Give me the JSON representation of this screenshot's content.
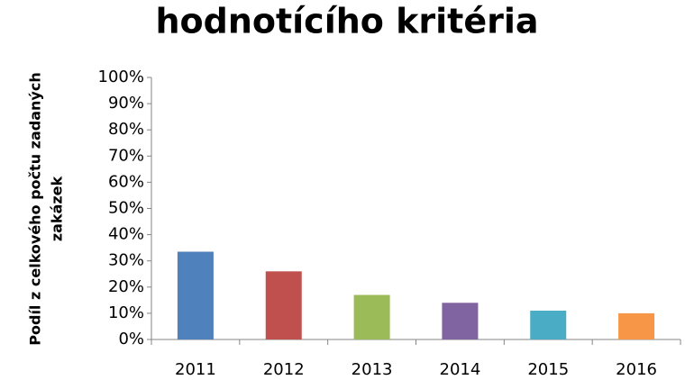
{
  "chart_data": {
    "type": "bar",
    "title": "hodnotícího kritéria",
    "y_label": [
      "Podíl z celkového počtu zadaných",
      "zakázek"
    ],
    "categories": [
      "2011",
      "2012",
      "2013",
      "2014",
      "2015",
      "2016"
    ],
    "values": [
      33.5,
      26,
      17,
      14,
      11,
      10
    ],
    "colors": [
      "#4f81bd",
      "#c0504d",
      "#9bbb59",
      "#8064a2",
      "#4bacc6",
      "#f79646"
    ],
    "ylim": [
      0,
      100
    ],
    "yticks": [
      {
        "value": 0,
        "label": "0%"
      },
      {
        "value": 10,
        "label": "10%"
      },
      {
        "value": 20,
        "label": "20%"
      },
      {
        "value": 30,
        "label": "30%"
      },
      {
        "value": 40,
        "label": "40%"
      },
      {
        "value": 50,
        "label": "50%"
      },
      {
        "value": 60,
        "label": "60%"
      },
      {
        "value": 70,
        "label": "70%"
      },
      {
        "value": 80,
        "label": "80%"
      },
      {
        "value": 90,
        "label": "90%"
      },
      {
        "value": 100,
        "label": "100%"
      }
    ],
    "grid": false
  }
}
